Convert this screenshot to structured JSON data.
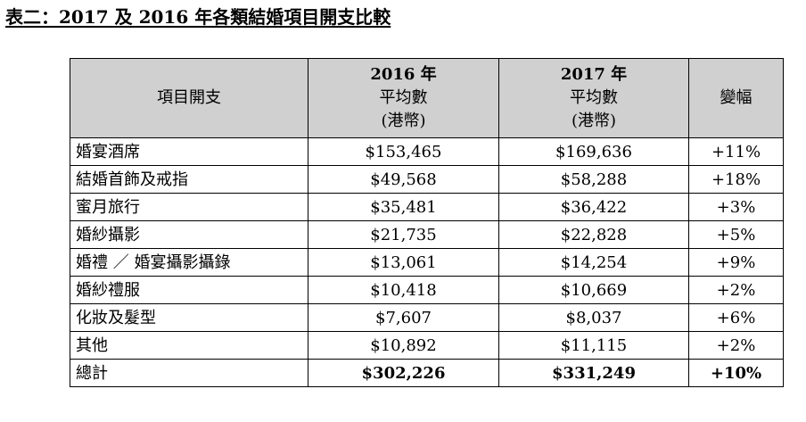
{
  "title": "表二：2017 及 2016 年各類結婚項目開支比較",
  "table": {
    "headers": {
      "item": "項目開支",
      "y2016": {
        "year": "2016 年",
        "line1": "平均數",
        "line2": "(港幣)"
      },
      "y2017": {
        "year": "2017 年",
        "line1": "平均數",
        "line2": "(港幣)"
      },
      "change": "變幅"
    },
    "rows": [
      {
        "item": "婚宴酒席",
        "v2016": "$153,465",
        "v2017": "$169,636",
        "change": "+11%"
      },
      {
        "item": "結婚首飾及戒指",
        "v2016": "$49,568",
        "v2017": "$58,288",
        "change": "+18%"
      },
      {
        "item": "蜜月旅行",
        "v2016": "$35,481",
        "v2017": "$36,422",
        "change": "+3%"
      },
      {
        "item": "婚紗攝影",
        "v2016": "$21,735",
        "v2017": "$22,828",
        "change": "+5%"
      },
      {
        "item": "婚禮 ／ 婚宴攝影攝錄",
        "v2016": "$13,061",
        "v2017": "$14,254",
        "change": "+9%"
      },
      {
        "item": "婚紗禮服",
        "v2016": "$10,418",
        "v2017": "$10,669",
        "change": "+2%"
      },
      {
        "item": "化妝及髮型",
        "v2016": "$7,607",
        "v2017": "$8,037",
        "change": "+6%"
      },
      {
        "item": "其他",
        "v2016": "$10,892",
        "v2017": "$11,115",
        "change": "+2%"
      }
    ],
    "total": {
      "item": "總計",
      "v2016": "$302,226",
      "v2017": "$331,249",
      "change": "+10%"
    }
  }
}
